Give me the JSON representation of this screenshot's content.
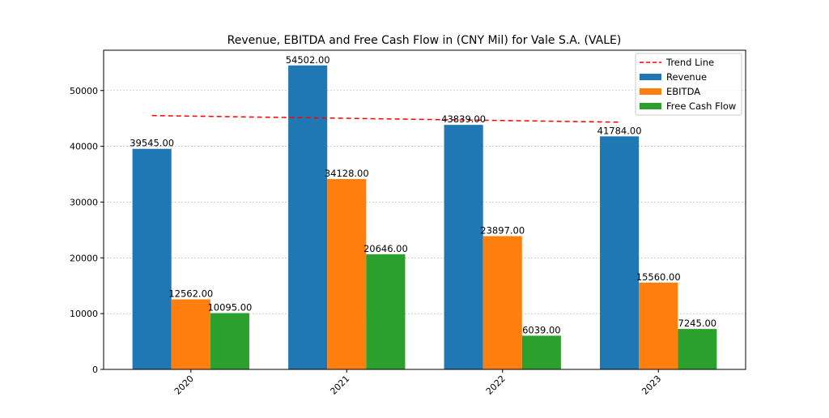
{
  "chart_data": {
    "type": "bar",
    "title": "Revenue, EBITDA and Free Cash Flow in (CNY Mil) for Vale S.A. (VALE)",
    "xlabel": "",
    "ylabel": "",
    "categories": [
      "2020",
      "2021",
      "2022",
      "2023"
    ],
    "series": [
      {
        "name": "Revenue",
        "color": "#1f77b4",
        "values": [
          39545,
          54502,
          43839,
          41784
        ],
        "labels": [
          "39545.00",
          "54502.00",
          "43839.00",
          "41784.00"
        ]
      },
      {
        "name": "EBITDA",
        "color": "#ff7f0e",
        "values": [
          12562,
          34128,
          23897,
          15560
        ],
        "labels": [
          "12562.00",
          "34128.00",
          "23897.00",
          "15560.00"
        ]
      },
      {
        "name": "Free Cash Flow",
        "color": "#2ca02c",
        "values": [
          10095,
          20646,
          6039,
          7245
        ],
        "labels": [
          "10095.00",
          "20646.00",
          "6039.00",
          "7245.00"
        ]
      }
    ],
    "trend_line": {
      "name": "Trend Line",
      "color": "#ff0000",
      "based_on": "Revenue",
      "start": 45509,
      "end": 44326
    },
    "ylim": [
      0,
      57227
    ],
    "yticks": [
      0,
      10000,
      20000,
      30000,
      40000,
      50000
    ],
    "ytick_labels": [
      "0",
      "10000",
      "20000",
      "30000",
      "40000",
      "50000"
    ],
    "grid": "horizontal dotted",
    "legend_position": "top-right",
    "legend": [
      "Trend Line",
      "Revenue",
      "EBITDA",
      "Free Cash Flow"
    ]
  }
}
